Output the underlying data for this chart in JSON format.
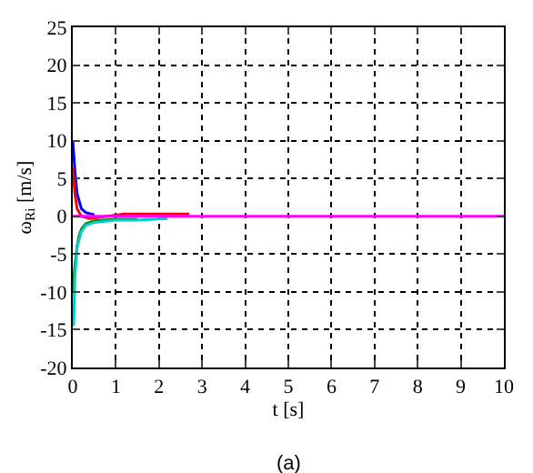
{
  "chart_data": {
    "type": "line",
    "xlabel": "t [s]",
    "ylabel": "ω$_{Ri}$ [m/s]",
    "annotations": [
      "(a)"
    ],
    "xlim": [
      0,
      10
    ],
    "ylim": [
      -20,
      25
    ],
    "xticks": [
      0,
      1,
      2,
      3,
      4,
      5,
      6,
      7,
      8,
      9,
      10
    ],
    "yticks": [
      -20,
      -15,
      -10,
      -5,
      0,
      5,
      10,
      15,
      20,
      25
    ],
    "grid": true,
    "line_style": "solid",
    "marker": "none",
    "series": [
      {
        "color": "#0000ff",
        "x": [
          0,
          0.05,
          0.1,
          0.15,
          0.2,
          0.3,
          0.5
        ],
        "values": [
          10,
          6,
          3,
          2,
          1,
          0.5,
          0.2
        ]
      },
      {
        "color": "#ff0000",
        "x": [
          0,
          0.05,
          0.1,
          0.15,
          0.2,
          0.4,
          1.2,
          2.7
        ],
        "values": [
          6.5,
          3,
          1,
          0.5,
          0,
          -0.3,
          0.3,
          0.3
        ]
      },
      {
        "color": "#008000",
        "x": [
          0,
          0.05,
          0.1,
          0.15,
          0.2,
          0.3,
          0.5,
          1,
          1.5
        ],
        "values": [
          -10,
          -6.5,
          -4,
          -2.5,
          -1.7,
          -1,
          -0.6,
          -0.4,
          -0.4
        ]
      },
      {
        "color": "#00cccc",
        "x": [
          0.02,
          0.05,
          0.1,
          0.2,
          0.3,
          0.5,
          1,
          1.5,
          2.2
        ],
        "values": [
          -14.5,
          -8,
          -4,
          -2,
          -1.2,
          -0.8,
          -0.5,
          -0.5,
          -0.3
        ]
      },
      {
        "color": "#ff00ff",
        "x": [
          0,
          10
        ],
        "values": [
          0,
          0
        ]
      }
    ]
  }
}
